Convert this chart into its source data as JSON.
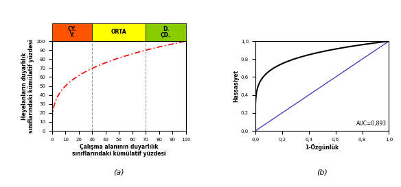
{
  "left_chart": {
    "xlabel": "Çalışma alanının duyarlılık\nsınıflarındaki kümülatif yüzdesi",
    "ylabel": "Heyelanların duyarlılık\nsınıflarındaki kümülatif yüzdesi",
    "label_a": "(a)",
    "xlim": [
      0,
      100
    ],
    "ylim": [
      0,
      100
    ],
    "xticks": [
      0,
      10,
      20,
      30,
      40,
      50,
      60,
      70,
      80,
      90,
      100
    ],
    "yticks": [
      0,
      10,
      20,
      30,
      40,
      50,
      60,
      70,
      80,
      90,
      100
    ],
    "vline1": 30,
    "vline2": 70,
    "curve_color": "#FF0000",
    "vline_color": "#999999",
    "header_boxes": [
      {
        "xmin": 0,
        "xmax": 30,
        "label": "ÇY.\nY.",
        "color": "#FF5500"
      },
      {
        "xmin": 30,
        "xmax": 70,
        "label": "ORTA",
        "color": "#FFFF00"
      },
      {
        "xmin": 70,
        "xmax": 100,
        "label": "D.\nÇD.",
        "color": "#88CC00"
      }
    ]
  },
  "right_chart": {
    "xlabel": "1-Özgünlük",
    "ylabel": "Hassasiyet",
    "label_b": "(b)",
    "auc_text": "AUC=0,893",
    "xlim": [
      0,
      1
    ],
    "ylim": [
      0,
      1
    ],
    "xticks": [
      0.0,
      0.2,
      0.4,
      0.6,
      0.8,
      1.0
    ],
    "yticks": [
      0.0,
      0.2,
      0.4,
      0.6,
      0.8,
      1.0
    ],
    "xtick_labels": [
      "0,0",
      "0,2",
      "0,4",
      "0,6",
      "0,8",
      "1,0"
    ],
    "ytick_labels": [
      "0,0",
      "0,2",
      "0,4",
      "0,6",
      "0,8",
      "1,0"
    ],
    "diag_color": "#3333BB",
    "roc_color": "#000000"
  },
  "fig_width": 5.84,
  "fig_height": 2.73,
  "dpi": 100
}
